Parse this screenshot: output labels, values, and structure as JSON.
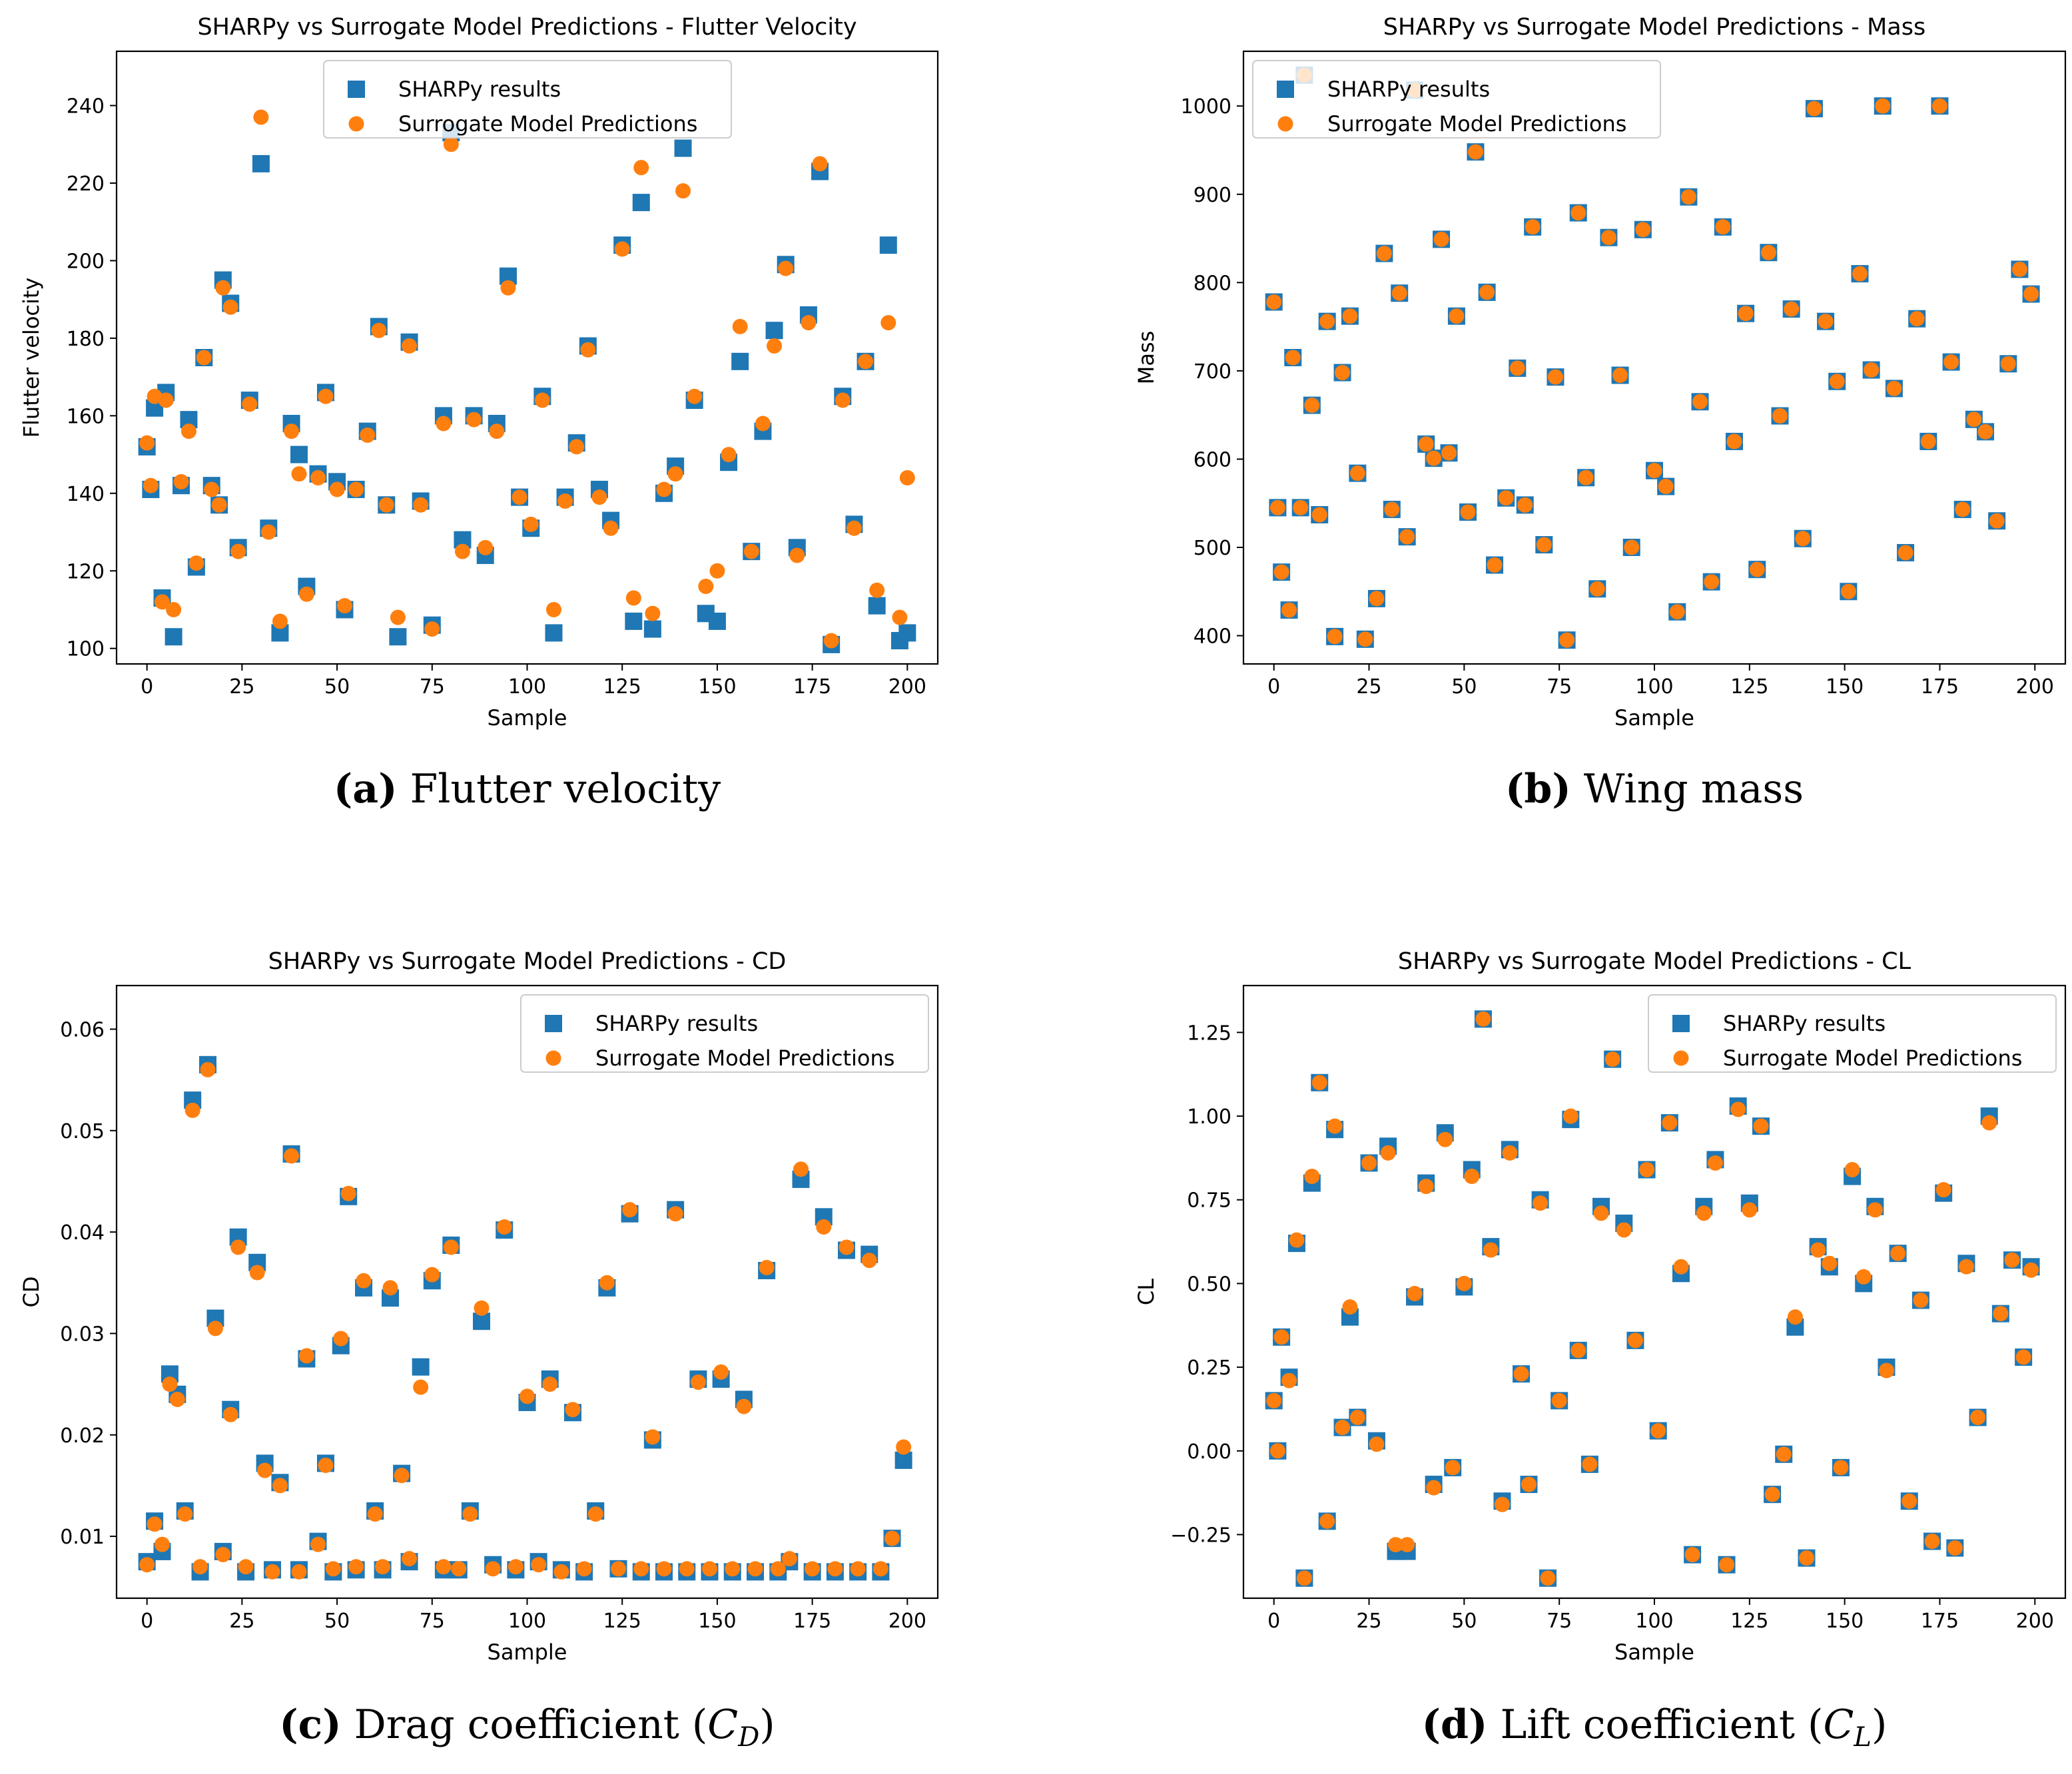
{
  "colors": {
    "sharpy": "#1f77b4",
    "surrogate": "#ff7f0e",
    "axis": "#000000"
  },
  "legend": {
    "sharpy_label": "SHARPy results",
    "surrogate_label": "Surrogate Model Predictions"
  },
  "chart_data": [
    {
      "id": "a",
      "type": "scatter",
      "title": "SHARPy vs Surrogate Model Predictions - Flutter Velocity",
      "xlabel": "Sample",
      "ylabel": "Flutter velocity",
      "xlim": [
        -8,
        208
      ],
      "ylim": [
        96,
        254
      ],
      "xticks": [
        0,
        25,
        50,
        75,
        100,
        125,
        150,
        175,
        200
      ],
      "yticks": [
        100,
        120,
        140,
        160,
        180,
        200,
        220,
        240
      ],
      "tick_decimals": 0,
      "legend_position": "upper-center",
      "caption_letter": "(a)",
      "caption_text": "Flutter velocity",
      "caption_sub": "",
      "series_x": [
        0,
        1,
        2,
        4,
        5,
        7,
        9,
        11,
        13,
        15,
        17,
        19,
        20,
        22,
        24,
        27,
        30,
        32,
        35,
        38,
        40,
        42,
        45,
        47,
        50,
        52,
        55,
        58,
        61,
        63,
        66,
        69,
        72,
        75,
        78,
        80,
        83,
        86,
        89,
        92,
        95,
        98,
        101,
        104,
        107,
        110,
        113,
        116,
        119,
        122,
        125,
        128,
        130,
        133,
        136,
        139,
        141,
        144,
        147,
        150,
        153,
        156,
        159,
        162,
        165,
        168,
        171,
        174,
        177,
        180,
        183,
        186,
        189,
        192,
        195,
        198,
        200
      ],
      "sharpy": [
        152,
        141,
        162,
        113,
        166,
        103,
        142,
        159,
        121,
        175,
        142,
        137,
        195,
        189,
        126,
        164,
        225,
        131,
        104,
        158,
        150,
        116,
        145,
        166,
        143,
        110,
        141,
        156,
        183,
        137,
        103,
        179,
        138,
        106,
        160,
        233,
        128,
        160,
        124,
        158,
        196,
        139,
        131,
        165,
        104,
        139,
        153,
        178,
        141,
        133,
        204,
        107,
        215,
        105,
        140,
        147,
        229,
        164,
        109,
        107,
        148,
        174,
        125,
        156,
        182,
        199,
        126,
        186,
        223,
        101,
        165,
        132,
        174,
        111,
        204,
        102,
        104
      ],
      "surrogate": [
        153,
        142,
        165,
        112,
        164,
        110,
        143,
        156,
        122,
        175,
        141,
        137,
        193,
        188,
        125,
        163,
        237,
        130,
        107,
        156,
        145,
        114,
        144,
        165,
        141,
        111,
        141,
        155,
        182,
        137,
        108,
        178,
        137,
        105,
        158,
        230,
        125,
        159,
        126,
        156,
        193,
        139,
        132,
        164,
        110,
        138,
        152,
        177,
        139,
        131,
        203,
        113,
        224,
        109,
        141,
        145,
        218,
        165,
        116,
        120,
        150,
        183,
        125,
        158,
        178,
        198,
        124,
        184,
        225,
        102,
        164,
        131,
        174,
        115,
        184,
        108,
        144
      ]
    },
    {
      "id": "b",
      "type": "scatter",
      "title": "SHARPy vs Surrogate Model Predictions - Mass",
      "xlabel": "Sample",
      "ylabel": "Mass",
      "xlim": [
        -8,
        208
      ],
      "ylim": [
        368,
        1062
      ],
      "xticks": [
        0,
        25,
        50,
        75,
        100,
        125,
        150,
        175,
        200
      ],
      "yticks": [
        400,
        500,
        600,
        700,
        800,
        900,
        1000
      ],
      "tick_decimals": 0,
      "legend_position": "upper-left",
      "caption_letter": "(b)",
      "caption_text": "Wing mass",
      "caption_sub": "",
      "series_x": [
        0,
        1,
        2,
        4,
        5,
        7,
        8,
        10,
        12,
        14,
        16,
        18,
        20,
        22,
        24,
        27,
        29,
        31,
        33,
        35,
        37,
        40,
        42,
        44,
        46,
        48,
        51,
        53,
        56,
        58,
        61,
        64,
        66,
        68,
        71,
        74,
        77,
        80,
        82,
        85,
        88,
        91,
        94,
        97,
        100,
        103,
        106,
        109,
        112,
        115,
        118,
        121,
        124,
        127,
        130,
        133,
        136,
        139,
        142,
        145,
        148,
        151,
        154,
        157,
        160,
        163,
        166,
        169,
        172,
        175,
        178,
        181,
        184,
        187,
        190,
        193,
        196,
        199
      ],
      "sharpy": [
        778,
        545,
        472,
        429,
        715,
        545,
        1035,
        661,
        537,
        756,
        399,
        698,
        762,
        584,
        396,
        442,
        833,
        543,
        788,
        512,
        1018,
        617,
        601,
        849,
        607,
        762,
        540,
        948,
        789,
        480,
        556,
        703,
        548,
        863,
        503,
        693,
        395,
        879,
        579,
        453,
        851,
        695,
        500,
        860,
        587,
        569,
        427,
        897,
        665,
        461,
        863,
        620,
        765,
        475,
        834,
        649,
        770,
        510,
        997,
        756,
        688,
        450,
        810,
        701,
        1000,
        680,
        494,
        759,
        620,
        1000,
        710,
        543,
        645,
        631,
        530,
        708,
        815,
        787
      ],
      "surrogate": [
        778,
        545,
        472,
        429,
        715,
        545,
        1035,
        661,
        537,
        756,
        399,
        698,
        762,
        584,
        396,
        442,
        833,
        543,
        788,
        512,
        1018,
        617,
        601,
        849,
        607,
        762,
        540,
        948,
        789,
        480,
        556,
        703,
        548,
        863,
        503,
        693,
        395,
        879,
        579,
        453,
        851,
        695,
        500,
        860,
        587,
        569,
        427,
        897,
        665,
        461,
        863,
        620,
        765,
        475,
        834,
        649,
        770,
        510,
        997,
        756,
        688,
        450,
        810,
        701,
        1000,
        680,
        494,
        759,
        620,
        1000,
        710,
        543,
        645,
        631,
        530,
        708,
        815,
        787
      ]
    },
    {
      "id": "c",
      "type": "scatter",
      "title": "SHARPy vs Surrogate Model Predictions - CD",
      "xlabel": "Sample",
      "ylabel": "CD",
      "xlim": [
        -8,
        208
      ],
      "ylim": [
        0.0039,
        0.0643
      ],
      "xticks": [
        0,
        25,
        50,
        75,
        100,
        125,
        150,
        175,
        200
      ],
      "yticks": [
        0.01,
        0.02,
        0.03,
        0.04,
        0.05,
        0.06
      ],
      "tick_decimals": 2,
      "legend_position": "upper-right",
      "caption_letter": "(c)",
      "caption_text": "Drag coefficient (",
      "caption_sub": "D",
      "caption_var": "C",
      "series_x": [
        0,
        2,
        4,
        6,
        8,
        10,
        12,
        14,
        16,
        18,
        20,
        22,
        24,
        26,
        29,
        31,
        33,
        35,
        38,
        40,
        42,
        45,
        47,
        49,
        51,
        53,
        55,
        57,
        60,
        62,
        64,
        67,
        69,
        72,
        75,
        78,
        80,
        82,
        85,
        88,
        91,
        94,
        97,
        100,
        103,
        106,
        109,
        112,
        115,
        118,
        121,
        124,
        127,
        130,
        133,
        136,
        139,
        142,
        145,
        148,
        151,
        154,
        157,
        160,
        163,
        166,
        169,
        172,
        175,
        178,
        181,
        184,
        187,
        190,
        193,
        196,
        199
      ],
      "sharpy": [
        0.0075,
        0.0115,
        0.0085,
        0.026,
        0.024,
        0.0125,
        0.053,
        0.0065,
        0.0565,
        0.0315,
        0.0085,
        0.0225,
        0.0395,
        0.0065,
        0.037,
        0.0172,
        0.0067,
        0.0153,
        0.0477,
        0.0067,
        0.0275,
        0.0095,
        0.0172,
        0.0065,
        0.0288,
        0.0435,
        0.0067,
        0.0345,
        0.0125,
        0.0067,
        0.0335,
        0.0162,
        0.0075,
        0.0267,
        0.0352,
        0.0067,
        0.0387,
        0.0067,
        0.0125,
        0.0312,
        0.0072,
        0.0402,
        0.0067,
        0.0232,
        0.0075,
        0.0255,
        0.0067,
        0.0222,
        0.0065,
        0.0125,
        0.0345,
        0.0068,
        0.0418,
        0.0065,
        0.0195,
        0.0065,
        0.0422,
        0.0065,
        0.0255,
        0.0065,
        0.0255,
        0.0065,
        0.0235,
        0.0065,
        0.0362,
        0.0065,
        0.0075,
        0.0452,
        0.0065,
        0.0415,
        0.0065,
        0.0382,
        0.0065,
        0.0378,
        0.0065,
        0.0098,
        0.0175
      ],
      "surrogate": [
        0.0072,
        0.0112,
        0.0092,
        0.025,
        0.0235,
        0.0122,
        0.052,
        0.007,
        0.056,
        0.0305,
        0.0082,
        0.022,
        0.0385,
        0.007,
        0.036,
        0.0165,
        0.0065,
        0.015,
        0.0475,
        0.0065,
        0.0278,
        0.0092,
        0.017,
        0.0068,
        0.0295,
        0.0438,
        0.007,
        0.0352,
        0.0122,
        0.007,
        0.0345,
        0.016,
        0.0078,
        0.0247,
        0.0358,
        0.007,
        0.0385,
        0.0068,
        0.0122,
        0.0325,
        0.0068,
        0.0405,
        0.007,
        0.0238,
        0.0072,
        0.025,
        0.0065,
        0.0225,
        0.0068,
        0.0122,
        0.035,
        0.0068,
        0.0422,
        0.0068,
        0.0198,
        0.0068,
        0.0418,
        0.0068,
        0.0252,
        0.0068,
        0.0262,
        0.0068,
        0.0228,
        0.0068,
        0.0365,
        0.0068,
        0.0078,
        0.0462,
        0.0068,
        0.0405,
        0.0068,
        0.0385,
        0.0068,
        0.0372,
        0.0068,
        0.0098,
        0.0188
      ]
    },
    {
      "id": "d",
      "type": "scatter",
      "title": "SHARPy vs Surrogate Model Predictions - CL",
      "xlabel": "Sample",
      "ylabel": "CL",
      "xlim": [
        -8,
        208
      ],
      "ylim": [
        -0.44,
        1.39
      ],
      "xticks": [
        0,
        25,
        50,
        75,
        100,
        125,
        150,
        175,
        200
      ],
      "yticks": [
        -0.25,
        0.0,
        0.25,
        0.5,
        0.75,
        1.0,
        1.25
      ],
      "tick_decimals": 2,
      "legend_position": "upper-right",
      "caption_letter": "(d)",
      "caption_text": "Lift coefficient (",
      "caption_sub": "L",
      "caption_var": "C",
      "series_x": [
        0,
        1,
        2,
        4,
        6,
        8,
        10,
        12,
        14,
        16,
        18,
        20,
        22,
        25,
        27,
        30,
        32,
        35,
        37,
        40,
        42,
        45,
        47,
        50,
        52,
        55,
        57,
        60,
        62,
        65,
        67,
        70,
        72,
        75,
        78,
        80,
        83,
        86,
        89,
        92,
        95,
        98,
        101,
        104,
        107,
        110,
        113,
        116,
        119,
        122,
        125,
        128,
        131,
        134,
        137,
        140,
        143,
        146,
        149,
        152,
        155,
        158,
        161,
        164,
        167,
        170,
        173,
        176,
        179,
        182,
        185,
        188,
        191,
        194,
        197,
        199
      ],
      "sharpy": [
        0.15,
        0.0,
        0.34,
        0.22,
        0.62,
        -0.38,
        0.8,
        1.1,
        -0.21,
        0.96,
        0.07,
        0.4,
        0.1,
        0.86,
        0.03,
        0.91,
        -0.3,
        -0.3,
        0.46,
        0.8,
        -0.1,
        0.95,
        -0.05,
        0.49,
        0.84,
        1.29,
        0.61,
        -0.15,
        0.9,
        0.23,
        -0.1,
        0.75,
        -0.38,
        0.15,
        0.99,
        0.3,
        -0.04,
        0.73,
        1.17,
        0.68,
        0.33,
        0.84,
        0.06,
        0.98,
        0.53,
        -0.31,
        0.73,
        0.87,
        -0.34,
        1.03,
        0.74,
        0.97,
        -0.13,
        -0.01,
        0.37,
        -0.32,
        0.61,
        0.55,
        -0.05,
        0.82,
        0.5,
        0.73,
        0.25,
        0.59,
        -0.15,
        0.45,
        -0.27,
        0.77,
        -0.29,
        0.56,
        0.1,
        1.0,
        0.41,
        0.57,
        0.28,
        0.55
      ],
      "surrogate": [
        0.15,
        0.0,
        0.34,
        0.21,
        0.63,
        -0.38,
        0.82,
        1.1,
        -0.21,
        0.97,
        0.07,
        0.43,
        0.1,
        0.86,
        0.02,
        0.89,
        -0.28,
        -0.28,
        0.47,
        0.79,
        -0.11,
        0.93,
        -0.05,
        0.5,
        0.82,
        1.29,
        0.6,
        -0.16,
        0.89,
        0.23,
        -0.1,
        0.74,
        -0.38,
        0.15,
        1.0,
        0.3,
        -0.04,
        0.71,
        1.17,
        0.66,
        0.33,
        0.84,
        0.06,
        0.98,
        0.55,
        -0.31,
        0.71,
        0.86,
        -0.34,
        1.02,
        0.72,
        0.97,
        -0.13,
        -0.01,
        0.4,
        -0.32,
        0.6,
        0.56,
        -0.05,
        0.84,
        0.52,
        0.72,
        0.24,
        0.59,
        -0.15,
        0.45,
        -0.27,
        0.78,
        -0.29,
        0.55,
        0.1,
        0.98,
        0.41,
        0.57,
        0.28,
        0.54
      ]
    }
  ]
}
